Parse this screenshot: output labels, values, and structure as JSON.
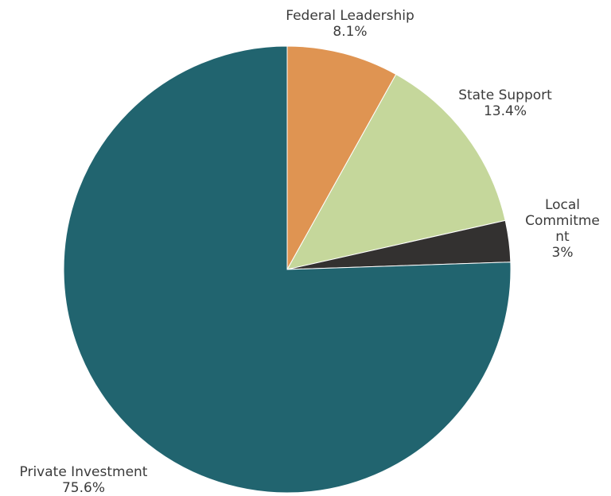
{
  "chart_data": {
    "type": "pie",
    "title": "",
    "start_angle_deg": 0,
    "direction": "clockwise",
    "legend": "none",
    "slices": [
      {
        "name": "Federal Leadership",
        "value": 8.1,
        "label": "8.1%",
        "name_lines": [
          "Federal Leadership"
        ],
        "color": "#df9452"
      },
      {
        "name": "State Support",
        "value": 13.4,
        "label": "13.4%",
        "name_lines": [
          "State Support"
        ],
        "color": "#c5d79b"
      },
      {
        "name": "Local Commitment",
        "value": 3,
        "label": "3%",
        "name_lines": [
          "Local",
          "Commitme",
          "nt"
        ],
        "color": "#333130"
      },
      {
        "name": "Private Investment",
        "value": 75.6,
        "label": "75.6%",
        "name_lines": [
          "Private Investment"
        ],
        "color": "#21646f"
      }
    ]
  }
}
